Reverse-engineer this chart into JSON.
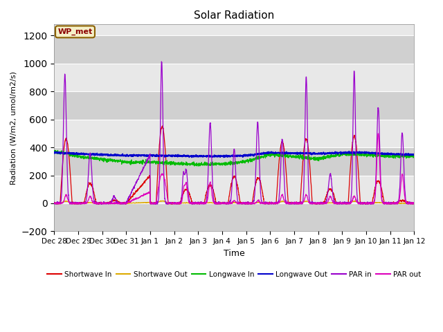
{
  "title": "Solar Radiation",
  "xlabel": "Time",
  "ylabel": "Radiation (W/m2, umol/m2/s)",
  "ylim": [
    -200,
    1280
  ],
  "yticks": [
    -200,
    0,
    200,
    400,
    600,
    800,
    1000,
    1200
  ],
  "bg_color_light": "#e8e8e8",
  "bg_color_dark": "#d0d0d0",
  "annotation_text": "WP_met",
  "annotation_bg": "#f5f0c8",
  "annotation_border": "#8b6000",
  "annotation_text_color": "#8b0000",
  "series_colors": {
    "sw_in": "#dd0000",
    "sw_out": "#ddaa00",
    "lw_in": "#00bb00",
    "lw_out": "#0000cc",
    "par_in": "#9900cc",
    "par_out": "#dd00bb"
  },
  "legend_labels": [
    "Shortwave In",
    "Shortwave Out",
    "Longwave In",
    "Longwave Out",
    "PAR in",
    "PAR out"
  ],
  "xtick_labels": [
    "Dec 28",
    "Dec 29",
    "Dec 30",
    "Dec 31",
    "Jan 1",
    "Jan 2",
    "Jan 3",
    "Jan 4",
    "Jan 5",
    "Jan 6",
    "Jan 7",
    "Jan 8",
    "Jan 9",
    "Jan 10",
    "Jan 11",
    "Jan 12"
  ],
  "n_days": 15
}
